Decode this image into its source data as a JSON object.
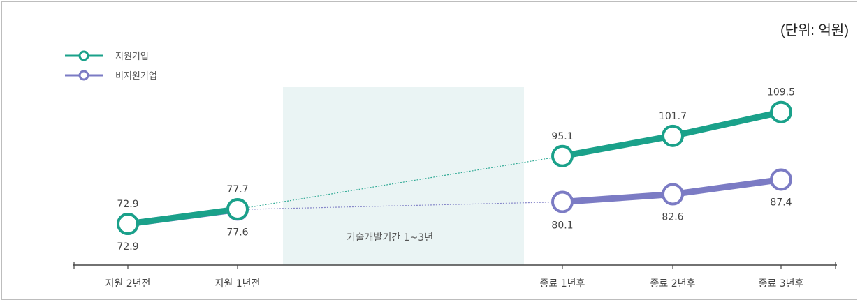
{
  "chart_data": {
    "type": "line",
    "unit_label": "(단위: 억원)",
    "categories": [
      "지원 2년전",
      "지원 1년전",
      "",
      "종료 1년후",
      "종료 2년후",
      "종료 3년후"
    ],
    "band_label": "기술개발기간 1~3년",
    "series": [
      {
        "name": "지원기업",
        "color": "#1aa18a",
        "values": [
          72.9,
          77.7,
          null,
          95.1,
          101.7,
          109.5
        ],
        "labels": [
          "72.9",
          "77.7",
          "",
          "95.1",
          "101.7",
          "109.5"
        ]
      },
      {
        "name": "비지원기업",
        "color": "#7b7bc4",
        "values": [
          72.9,
          77.6,
          null,
          80.1,
          82.6,
          87.4
        ],
        "labels": [
          "72.9",
          "77.6",
          "",
          "80.1",
          "82.6",
          "87.4"
        ]
      }
    ],
    "legend_position": "top-left",
    "grid": false
  }
}
